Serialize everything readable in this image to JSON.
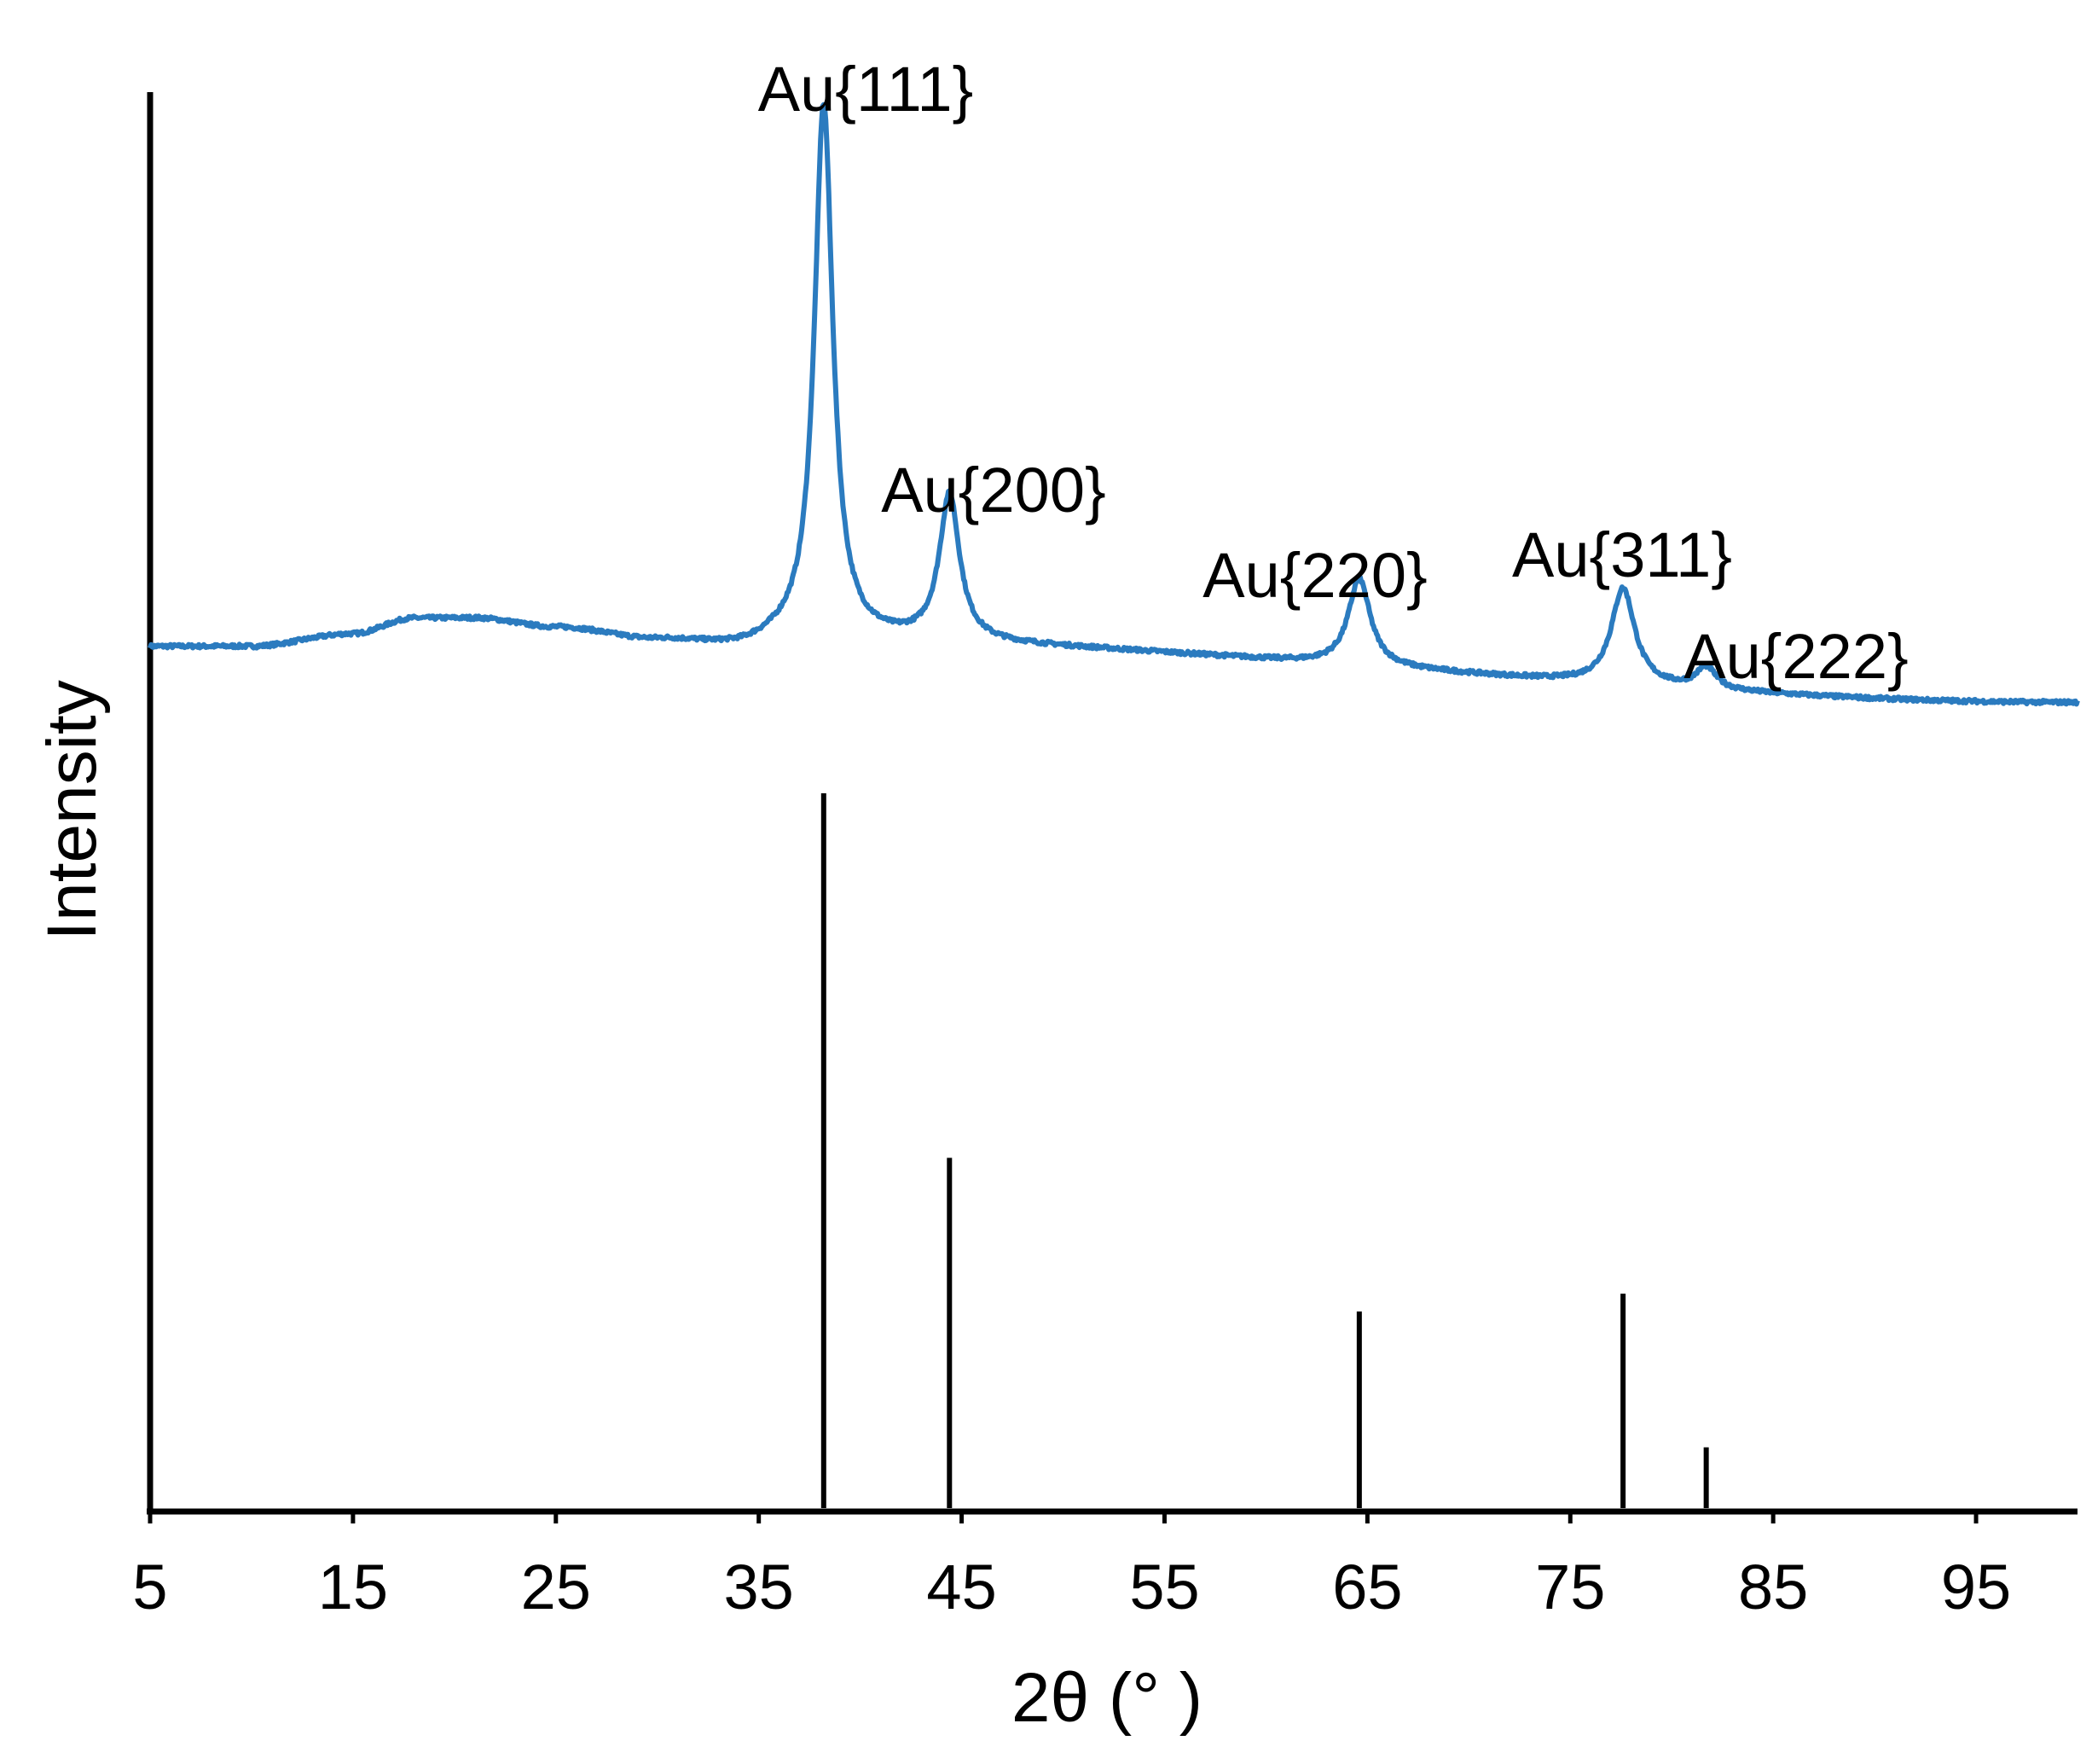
{
  "chart_data": {
    "type": "line",
    "title": "",
    "xlabel": "2θ (°  )",
    "ylabel": "Intensity",
    "xlim": [
      5,
      100
    ],
    "xticks": [
      "5",
      "15",
      "25",
      "35",
      "45",
      "55",
      "65",
      "75",
      "85",
      "95"
    ],
    "y_scale": "arbitrary units, no tick labels",
    "grid": false,
    "legend": "none",
    "colors": {
      "pattern": "#2b7bbf",
      "reference": "#000000",
      "axes": "#000000"
    },
    "pattern": {
      "baseline": [
        [
          5,
          0.14
        ],
        [
          10,
          0.14
        ],
        [
          15,
          0.16
        ],
        [
          18,
          0.185
        ],
        [
          21,
          0.185
        ],
        [
          25,
          0.17
        ],
        [
          30,
          0.15
        ],
        [
          34,
          0.14
        ],
        [
          36.5,
          0.15
        ],
        [
          99.5,
          0.05
        ]
      ],
      "peaks": [
        {
          "label": "Au{111}",
          "x": 38.2,
          "height": 0.86,
          "width": 0.55
        },
        {
          "label": "Au{200}",
          "x": 44.4,
          "height": 0.235,
          "width": 0.6
        },
        {
          "label": "Au{220}",
          "x": 64.6,
          "height": 0.14,
          "width": 0.65
        },
        {
          "label": "Au{311}",
          "x": 77.6,
          "height": 0.155,
          "width": 0.7
        },
        {
          "label": "Au{222}",
          "x": 81.7,
          "height": 0.035,
          "width": 0.6
        }
      ]
    },
    "reference_lines": [
      {
        "x": 38.2,
        "height": 1.0
      },
      {
        "x": 44.4,
        "height": 0.49
      },
      {
        "x": 64.6,
        "height": 0.275
      },
      {
        "x": 77.6,
        "height": 0.3
      },
      {
        "x": 81.7,
        "height": 0.085
      }
    ]
  }
}
